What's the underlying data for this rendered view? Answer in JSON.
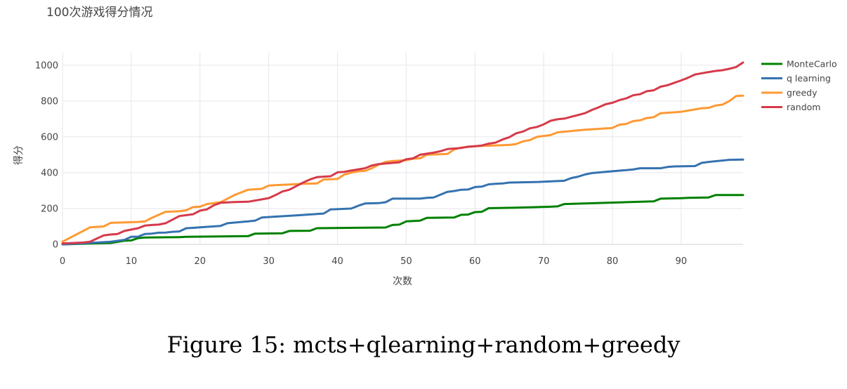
{
  "chart_data": {
    "type": "line",
    "title": "100次游戏得分情况",
    "xlabel": "次数",
    "ylabel": "得分",
    "xlim": [
      0,
      99
    ],
    "ylim": [
      0,
      1070
    ],
    "xticks": [
      0,
      10,
      20,
      30,
      40,
      50,
      60,
      70,
      80,
      90
    ],
    "yticks": [
      0,
      200,
      400,
      600,
      800,
      1000
    ],
    "grid": true,
    "legend_position": "top-right",
    "series": [
      {
        "name": "MonteCarlo",
        "color": "#008000",
        "points": [
          [
            0,
            0
          ],
          [
            7,
            8
          ],
          [
            9,
            20
          ],
          [
            10,
            22
          ],
          [
            11,
            35
          ],
          [
            12,
            38
          ],
          [
            17,
            40
          ],
          [
            18,
            42
          ],
          [
            27,
            46
          ],
          [
            28,
            60
          ],
          [
            32,
            62
          ],
          [
            33,
            75
          ],
          [
            36,
            76
          ],
          [
            37,
            90
          ],
          [
            47,
            94
          ],
          [
            48,
            108
          ],
          [
            49,
            110
          ],
          [
            50,
            128
          ],
          [
            52,
            132
          ],
          [
            53,
            148
          ],
          [
            57,
            150
          ],
          [
            58,
            165
          ],
          [
            59,
            166
          ],
          [
            60,
            180
          ],
          [
            61,
            182
          ],
          [
            62,
            202
          ],
          [
            66,
            205
          ],
          [
            71,
            210
          ],
          [
            72,
            212
          ],
          [
            73,
            225
          ],
          [
            86,
            240
          ],
          [
            87,
            255
          ],
          [
            90,
            258
          ],
          [
            91,
            260
          ],
          [
            94,
            262
          ],
          [
            95,
            275
          ],
          [
            99,
            275
          ]
        ]
      },
      {
        "name": "q learning",
        "color": "#3572b0",
        "points": [
          [
            0,
            0
          ],
          [
            4,
            8
          ],
          [
            7,
            15
          ],
          [
            9,
            25
          ],
          [
            10,
            42
          ],
          [
            11,
            43
          ],
          [
            12,
            58
          ],
          [
            13,
            60
          ],
          [
            14,
            65
          ],
          [
            15,
            66
          ],
          [
            16,
            70
          ],
          [
            17,
            72
          ],
          [
            18,
            90
          ],
          [
            19,
            92
          ],
          [
            20,
            95
          ],
          [
            23,
            103
          ],
          [
            24,
            118
          ],
          [
            27,
            128
          ],
          [
            28,
            132
          ],
          [
            29,
            150
          ],
          [
            31,
            155
          ],
          [
            34,
            162
          ],
          [
            38,
            172
          ],
          [
            39,
            195
          ],
          [
            42,
            200
          ],
          [
            43,
            215
          ],
          [
            44,
            228
          ],
          [
            46,
            230
          ],
          [
            47,
            235
          ],
          [
            48,
            255
          ],
          [
            52,
            255
          ],
          [
            53,
            260
          ],
          [
            54,
            262
          ],
          [
            55,
            278
          ],
          [
            56,
            293
          ],
          [
            57,
            298
          ],
          [
            58,
            305
          ],
          [
            59,
            306
          ],
          [
            60,
            320
          ],
          [
            61,
            322
          ],
          [
            62,
            335
          ],
          [
            63,
            338
          ],
          [
            64,
            340
          ],
          [
            65,
            345
          ],
          [
            69,
            348
          ],
          [
            73,
            355
          ],
          [
            74,
            370
          ],
          [
            75,
            378
          ],
          [
            76,
            390
          ],
          [
            77,
            398
          ],
          [
            80,
            408
          ],
          [
            83,
            418
          ],
          [
            84,
            425
          ],
          [
            87,
            425
          ],
          [
            88,
            432
          ],
          [
            89,
            435
          ],
          [
            92,
            437
          ],
          [
            93,
            455
          ],
          [
            94,
            460
          ],
          [
            96,
            468
          ],
          [
            97,
            472
          ],
          [
            99,
            473
          ]
        ]
      },
      {
        "name": "greedy",
        "color": "#ff9933",
        "points": [
          [
            0,
            15
          ],
          [
            4,
            95
          ],
          [
            6,
            100
          ],
          [
            7,
            120
          ],
          [
            11,
            125
          ],
          [
            12,
            128
          ],
          [
            13,
            148
          ],
          [
            15,
            182
          ],
          [
            17,
            185
          ],
          [
            18,
            190
          ],
          [
            19,
            208
          ],
          [
            20,
            210
          ],
          [
            21,
            225
          ],
          [
            23,
            235
          ],
          [
            24,
            255
          ],
          [
            25,
            275
          ],
          [
            26,
            290
          ],
          [
            27,
            305
          ],
          [
            29,
            310
          ],
          [
            30,
            328
          ],
          [
            35,
            338
          ],
          [
            37,
            340
          ],
          [
            38,
            362
          ],
          [
            40,
            365
          ],
          [
            41,
            390
          ],
          [
            42,
            400
          ],
          [
            43,
            408
          ],
          [
            44,
            410
          ],
          [
            45,
            425
          ],
          [
            46,
            445
          ],
          [
            47,
            460
          ],
          [
            48,
            465
          ],
          [
            50,
            470
          ],
          [
            51,
            478
          ],
          [
            52,
            480
          ],
          [
            53,
            500
          ],
          [
            56,
            505
          ],
          [
            57,
            530
          ],
          [
            58,
            540
          ],
          [
            60,
            548
          ],
          [
            65,
            555
          ],
          [
            66,
            560
          ],
          [
            67,
            575
          ],
          [
            68,
            582
          ],
          [
            69,
            600
          ],
          [
            70,
            605
          ],
          [
            71,
            610
          ],
          [
            72,
            625
          ],
          [
            76,
            640
          ],
          [
            80,
            650
          ],
          [
            81,
            668
          ],
          [
            82,
            672
          ],
          [
            83,
            688
          ],
          [
            84,
            692
          ],
          [
            85,
            705
          ],
          [
            86,
            710
          ],
          [
            87,
            732
          ],
          [
            90,
            740
          ],
          [
            93,
            760
          ],
          [
            94,
            762
          ],
          [
            95,
            775
          ],
          [
            96,
            780
          ],
          [
            97,
            800
          ],
          [
            98,
            828
          ],
          [
            99,
            830
          ]
        ]
      },
      {
        "name": "random",
        "color": "#d63a4a",
        "points": [
          [
            0,
            5
          ],
          [
            3,
            10
          ],
          [
            4,
            15
          ],
          [
            5,
            32
          ],
          [
            6,
            50
          ],
          [
            7,
            55
          ],
          [
            8,
            58
          ],
          [
            9,
            75
          ],
          [
            11,
            90
          ],
          [
            12,
            105
          ],
          [
            13,
            108
          ],
          [
            14,
            110
          ],
          [
            15,
            118
          ],
          [
            16,
            138
          ],
          [
            17,
            158
          ],
          [
            19,
            168
          ],
          [
            20,
            188
          ],
          [
            21,
            195
          ],
          [
            22,
            218
          ],
          [
            23,
            232
          ],
          [
            25,
            236
          ],
          [
            27,
            238
          ],
          [
            30,
            258
          ],
          [
            31,
            275
          ],
          [
            32,
            295
          ],
          [
            33,
            305
          ],
          [
            34,
            325
          ],
          [
            35,
            345
          ],
          [
            36,
            362
          ],
          [
            37,
            375
          ],
          [
            39,
            380
          ],
          [
            40,
            402
          ],
          [
            41,
            405
          ],
          [
            42,
            412
          ],
          [
            44,
            425
          ],
          [
            45,
            440
          ],
          [
            46,
            448
          ],
          [
            49,
            458
          ],
          [
            50,
            475
          ],
          [
            51,
            480
          ],
          [
            52,
            500
          ],
          [
            54,
            512
          ],
          [
            55,
            520
          ],
          [
            56,
            532
          ],
          [
            58,
            538
          ],
          [
            59,
            545
          ],
          [
            60,
            548
          ],
          [
            61,
            552
          ],
          [
            62,
            562
          ],
          [
            63,
            568
          ],
          [
            64,
            585
          ],
          [
            65,
            598
          ],
          [
            66,
            620
          ],
          [
            67,
            630
          ],
          [
            68,
            648
          ],
          [
            69,
            655
          ],
          [
            70,
            670
          ],
          [
            71,
            690
          ],
          [
            72,
            698
          ],
          [
            73,
            702
          ],
          [
            74,
            712
          ],
          [
            75,
            722
          ],
          [
            76,
            732
          ],
          [
            77,
            750
          ],
          [
            78,
            765
          ],
          [
            79,
            782
          ],
          [
            80,
            790
          ],
          [
            81,
            805
          ],
          [
            82,
            815
          ],
          [
            83,
            832
          ],
          [
            84,
            838
          ],
          [
            85,
            855
          ],
          [
            86,
            860
          ],
          [
            87,
            880
          ],
          [
            88,
            888
          ],
          [
            89,
            902
          ],
          [
            90,
            915
          ],
          [
            91,
            930
          ],
          [
            92,
            948
          ],
          [
            93,
            955
          ],
          [
            94,
            962
          ],
          [
            95,
            968
          ],
          [
            96,
            972
          ],
          [
            97,
            980
          ],
          [
            98,
            990
          ],
          [
            99,
            1015
          ]
        ]
      }
    ]
  },
  "caption": "Figure 15:  mcts+qlearning+random+greedy"
}
